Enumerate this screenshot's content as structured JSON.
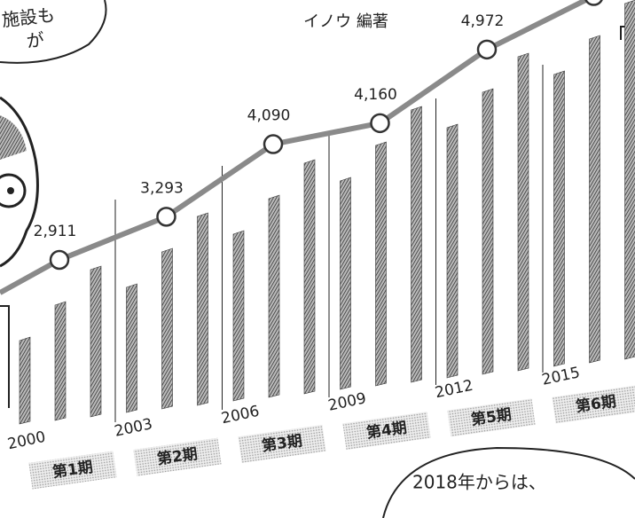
{
  "chart_data": {
    "type": "line",
    "title": "イノウ 編著",
    "annotations": [
      "と施設も",
      "が",
      "2018年からは、"
    ],
    "x": [
      2000,
      2003,
      2006,
      2009,
      2012,
      2015
    ],
    "x_labels": [
      "2000",
      "2003",
      "2006",
      "2009",
      "2012",
      "2015"
    ],
    "periods": [
      "第1期",
      "第2期",
      "第3期",
      "第4期",
      "第5期",
      "第6期"
    ],
    "series": [
      {
        "color": "#8a8a8a",
        "values": [
          2911,
          3293,
          4090,
          4160,
          4972,
          5500
        ],
        "value_labels": [
          "2,911",
          "3,293",
          "4,090",
          "4,160",
          "4,972",
          null
        ]
      }
    ]
  }
}
